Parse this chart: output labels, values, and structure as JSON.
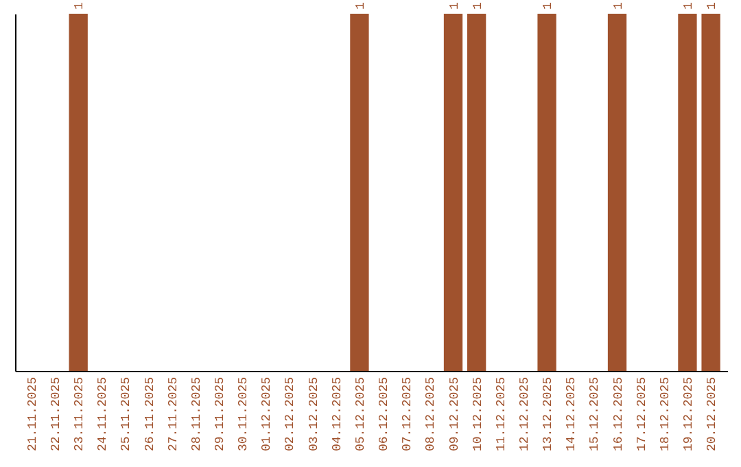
{
  "chart_data": {
    "type": "bar",
    "categories": [
      "21.11.2025",
      "22.11.2025",
      "23.11.2025",
      "24.11.2025",
      "25.11.2025",
      "26.11.2025",
      "27.11.2025",
      "28.11.2025",
      "29.11.2025",
      "30.11.2025",
      "01.12.2025",
      "02.12.2025",
      "03.12.2025",
      "04.12.2025",
      "05.12.2025",
      "06.12.2025",
      "07.12.2025",
      "08.12.2025",
      "09.12.2025",
      "10.12.2025",
      "11.12.2025",
      "12.12.2025",
      "13.12.2025",
      "14.12.2025",
      "15.12.2025",
      "16.12.2025",
      "17.12.2025",
      "18.12.2025",
      "19.12.2025",
      "20.12.2025"
    ],
    "values": [
      0,
      0,
      1,
      0,
      0,
      0,
      0,
      0,
      0,
      0,
      0,
      0,
      0,
      0,
      1,
      0,
      0,
      0,
      1,
      1,
      0,
      0,
      1,
      0,
      0,
      1,
      0,
      0,
      1,
      1
    ],
    "value_labels": [
      null,
      null,
      "1",
      null,
      null,
      null,
      null,
      null,
      null,
      null,
      null,
      null,
      null,
      null,
      "1",
      null,
      null,
      null,
      "1",
      "1",
      null,
      null,
      "1",
      null,
      null,
      "1",
      null,
      null,
      "1",
      "1"
    ],
    "color": "#a0522d",
    "grid": false,
    "tick_labels": "x"
  }
}
